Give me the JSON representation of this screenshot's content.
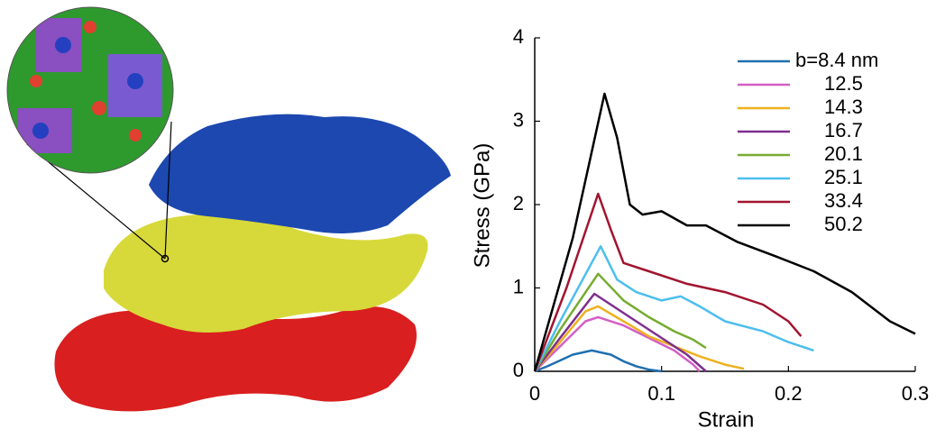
{
  "chart_data": {
    "type": "line",
    "xlabel": "Strain",
    "ylabel": "Stress (GPa)",
    "xlim": [
      0,
      0.3
    ],
    "ylim": [
      0,
      4
    ],
    "xticks": [
      0,
      0.1,
      0.2,
      0.3
    ],
    "yticks": [
      0,
      1,
      2,
      3,
      4
    ],
    "grid": false,
    "legend": "upper right",
    "series": [
      {
        "name": "b=8.4 nm",
        "color": "#1f6fb0",
        "x": [
          0,
          0.01,
          0.02,
          0.03,
          0.045,
          0.06,
          0.07,
          0.08,
          0.09,
          0.1
        ],
        "values": [
          0,
          0.06,
          0.13,
          0.2,
          0.25,
          0.2,
          0.12,
          0.06,
          0.02,
          0
        ]
      },
      {
        "name": "12.5",
        "color": "#d35fc4",
        "x": [
          0,
          0.02,
          0.04,
          0.05,
          0.07,
          0.09,
          0.11,
          0.125,
          0.13
        ],
        "values": [
          0,
          0.3,
          0.6,
          0.65,
          0.55,
          0.4,
          0.25,
          0.08,
          0
        ]
      },
      {
        "name": "14.3",
        "color": "#edb120",
        "x": [
          0,
          0.02,
          0.04,
          0.05,
          0.07,
          0.09,
          0.11,
          0.13,
          0.15,
          0.165
        ],
        "values": [
          0,
          0.35,
          0.72,
          0.78,
          0.6,
          0.42,
          0.3,
          0.18,
          0.08,
          0.03
        ]
      },
      {
        "name": "16.7",
        "color": "#7e2f8e",
        "x": [
          0,
          0.02,
          0.047,
          0.06,
          0.08,
          0.1,
          0.12,
          0.135
        ],
        "values": [
          0,
          0.4,
          0.93,
          0.8,
          0.6,
          0.4,
          0.2,
          0
        ]
      },
      {
        "name": "20.1",
        "color": "#77ac30",
        "x": [
          0,
          0.02,
          0.05,
          0.07,
          0.09,
          0.11,
          0.125,
          0.135
        ],
        "values": [
          0,
          0.5,
          1.17,
          0.85,
          0.65,
          0.48,
          0.38,
          0.28
        ]
      },
      {
        "name": "25.1",
        "color": "#4dbeee",
        "x": [
          0,
          0.02,
          0.052,
          0.065,
          0.08,
          0.1,
          0.115,
          0.13,
          0.15,
          0.18,
          0.2,
          0.22
        ],
        "values": [
          0,
          0.6,
          1.5,
          1.1,
          0.95,
          0.85,
          0.9,
          0.78,
          0.6,
          0.48,
          0.35,
          0.25
        ]
      },
      {
        "name": "33.4",
        "color": "#a2142f",
        "x": [
          0,
          0.025,
          0.05,
          0.06,
          0.07,
          0.09,
          0.12,
          0.15,
          0.18,
          0.2,
          0.21
        ],
        "values": [
          0,
          1.0,
          2.13,
          1.7,
          1.3,
          1.2,
          1.05,
          0.95,
          0.8,
          0.6,
          0.42
        ]
      },
      {
        "name": "50.2",
        "color": "#000000",
        "x": [
          0,
          0.03,
          0.055,
          0.065,
          0.075,
          0.085,
          0.1,
          0.12,
          0.135,
          0.16,
          0.19,
          0.22,
          0.25,
          0.28,
          0.3
        ],
        "values": [
          0,
          1.6,
          3.33,
          2.8,
          2.0,
          1.88,
          1.92,
          1.75,
          1.75,
          1.55,
          1.38,
          1.2,
          0.95,
          0.6,
          0.45
        ]
      }
    ]
  }
}
